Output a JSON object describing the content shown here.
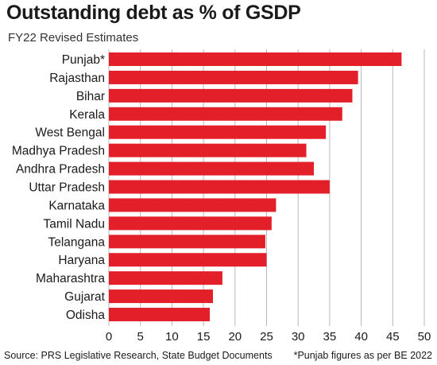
{
  "chart_data": {
    "type": "bar",
    "orientation": "horizontal",
    "title": "Outstanding debt as % of GSDP",
    "subtitle": "FY22 Revised Estimates",
    "categories": [
      "Punjab*",
      "Rajasthan",
      "Bihar",
      "Kerala",
      "West Bengal",
      "Madhya Pradesh",
      "Andhra Pradesh",
      "Uttar Pradesh",
      "Karnataka",
      "Tamil Nadu",
      "Telangana",
      "Haryana",
      "Maharashtra",
      "Gujarat",
      "Odisha"
    ],
    "values": [
      46.4,
      39.5,
      38.6,
      37.0,
      34.4,
      31.3,
      32.5,
      35.0,
      26.5,
      25.8,
      24.8,
      25.0,
      18.0,
      16.5,
      16.0
    ],
    "xlim": [
      0,
      50
    ],
    "xticks": [
      0,
      5,
      10,
      15,
      20,
      25,
      30,
      35,
      40,
      45,
      50
    ],
    "grid": true,
    "legend": "none",
    "bar_color": "#e3202a",
    "grid_color": "#b8b8b8"
  },
  "footer": {
    "source": "Source: PRS Legislative Research, State Budget Documents",
    "note": "*Punjab figures as per BE 2022"
  }
}
